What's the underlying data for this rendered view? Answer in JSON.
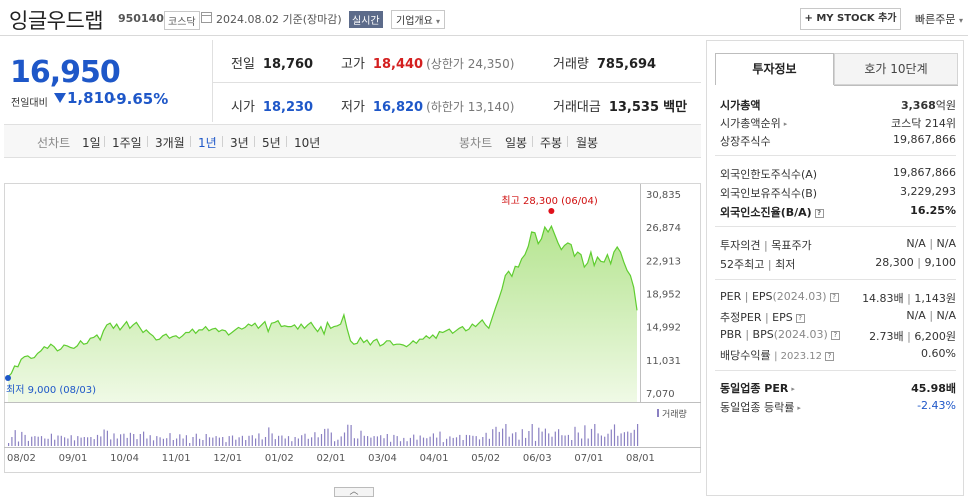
{
  "header": {
    "name": "잉글우드랩",
    "code": "950140",
    "market": "코스닥",
    "date": "2024.08.02",
    "basis": "기준(장마감)",
    "realtime": "실시간",
    "company_info": "기업개요",
    "my_stock": "+ MY STOCK 추가",
    "quick_order": "빠른주문"
  },
  "price": {
    "current": "16,950",
    "change_label": "전일대비",
    "change_amount": "1,810",
    "change_pct": "-9.65%"
  },
  "stats": {
    "prev_label": "전일",
    "prev_value": "18,760",
    "high_label": "고가",
    "high_value": "18,440",
    "upper_limit": "(상한가 24,350)",
    "volume_label": "거래량",
    "volume_value": "785,694",
    "open_label": "시가",
    "open_value": "18,230",
    "low_label": "저가",
    "low_value": "16,820",
    "lower_limit": "(하한가 13,140)",
    "amount_label": "거래대금",
    "amount_value": "13,535",
    "amount_unit": "백만"
  },
  "chart_controls": {
    "line_chart": "선차트",
    "periods": [
      "1일",
      "1주일",
      "3개월",
      "1년",
      "3년",
      "5년",
      "10년"
    ],
    "selected_period": "1년",
    "candle_chart": "봉차트",
    "candle_periods": [
      "일봉",
      "주봉",
      "월봉"
    ]
  },
  "chart_data": {
    "type": "area",
    "yticks": [
      "30,835",
      "26,874",
      "22,913",
      "18,952",
      "14,992",
      "11,031",
      "7,070"
    ],
    "ylim": [
      7070,
      30835
    ],
    "xticks": [
      "08/02",
      "09/01",
      "10/04",
      "11/01",
      "12/01",
      "01/02",
      "02/01",
      "03/04",
      "04/01",
      "05/02",
      "06/03",
      "07/01",
      "08/01"
    ],
    "max_label": "최고 28,300 (06/04)",
    "min_label": "최저 9,000 (08/03)",
    "volume_label": "거래량",
    "series": [
      {
        "values": [
          9000,
          9400,
          10300,
          10200,
          11100,
          11400,
          11500,
          11200,
          11300,
          11800,
          12100,
          12600,
          12400,
          12900,
          12600,
          12100,
          12300,
          12800,
          12700,
          12500,
          12400,
          12700,
          13300,
          12900,
          13000,
          13600,
          13700,
          14000,
          13400,
          14500,
          15200,
          15400,
          14800,
          15300,
          14600,
          15100,
          15600,
          14800,
          15200,
          15500,
          14900,
          14300,
          14600,
          14200,
          13900,
          13400,
          13500,
          13900,
          14100,
          13600,
          13800,
          13900,
          13600,
          13900,
          14300,
          14300,
          14700,
          14200,
          14600,
          14600,
          15000,
          14500,
          14700,
          14800,
          14400,
          14600,
          14500,
          14000,
          14300,
          14600,
          14900,
          14700,
          14900,
          15300,
          15100,
          15400,
          14800,
          15200,
          15600,
          14400,
          15400,
          15500,
          15700,
          15000,
          15100,
          15000,
          15000,
          15200,
          14700,
          15300,
          14800,
          15200,
          15500,
          14900,
          14400,
          15000,
          14100,
          15500,
          14800,
          15000,
          15100,
          15300,
          16400,
          14700,
          13300,
          12900,
          13000,
          13700,
          13100,
          13400,
          12800,
          13300,
          13500,
          12700,
          12900,
          13300,
          13300,
          12800,
          12900,
          12900,
          12800,
          12600,
          12900,
          13300,
          13000,
          13500,
          13500,
          13900,
          13600,
          14000,
          13600,
          14400,
          14300,
          14500,
          14700,
          14200,
          14500,
          14800,
          15000,
          14500,
          14700,
          15300,
          15000,
          15400,
          15800,
          15200,
          14800,
          16000,
          17200,
          18300,
          19500,
          21100,
          21600,
          21000,
          22200,
          22100,
          23100,
          23600,
          24600,
          26300,
          26200,
          24900,
          25500,
          26900,
          26300,
          27000,
          26000,
          25000,
          24200,
          24700,
          25000,
          24800,
          23400,
          23900,
          23600,
          22100,
          22600,
          23900,
          22300,
          23300,
          22800,
          22700,
          23600,
          22500,
          23900,
          24500,
          23900,
          22700,
          21700,
          21100,
          19700,
          16950
        ]
      }
    ]
  }
}
